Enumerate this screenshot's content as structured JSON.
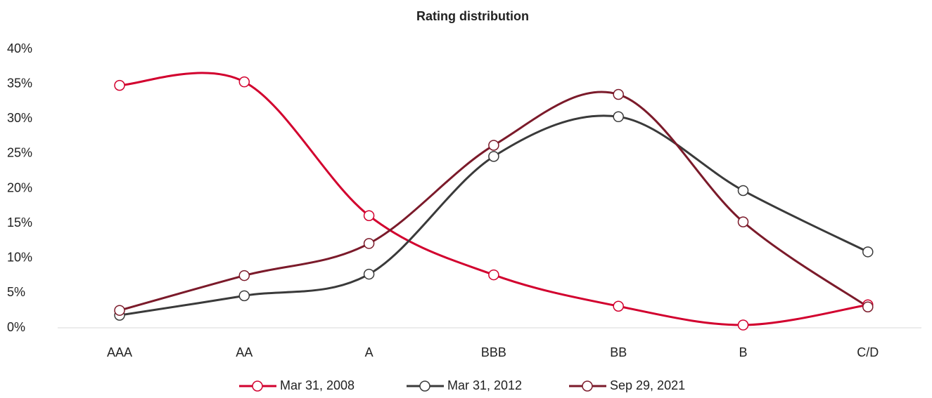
{
  "chart_data": {
    "type": "line",
    "title": "Rating distribution",
    "categories": [
      "AAA",
      "AA",
      "A",
      "BBB",
      "BB",
      "B",
      "C/D"
    ],
    "series": [
      {
        "name": "Mar 31, 2008",
        "color": "#d2002e",
        "values": [
          34.8,
          35.3,
          16.1,
          7.6,
          3.1,
          0.4,
          3.3
        ]
      },
      {
        "name": "Mar 31, 2012",
        "color": "#3a3a3a",
        "values": [
          1.8,
          4.6,
          7.7,
          24.6,
          30.3,
          19.7,
          10.9
        ]
      },
      {
        "name": "Sep 29, 2021",
        "color": "#7b1a2a",
        "values": [
          2.5,
          7.5,
          12.1,
          26.2,
          33.5,
          15.2,
          3.0
        ]
      }
    ],
    "ylim": [
      0,
      40
    ],
    "yticks": [
      {
        "value": 0,
        "label": "0%"
      },
      {
        "value": 5,
        "label": "5%"
      },
      {
        "value": 10,
        "label": "10%"
      },
      {
        "value": 15,
        "label": "15%"
      },
      {
        "value": 20,
        "label": "20%"
      },
      {
        "value": 25,
        "label": "25%"
      },
      {
        "value": 30,
        "label": "30%"
      },
      {
        "value": 35,
        "label": "35%"
      },
      {
        "value": 40,
        "label": "40%"
      }
    ],
    "grid": false,
    "legend": "bottom"
  }
}
